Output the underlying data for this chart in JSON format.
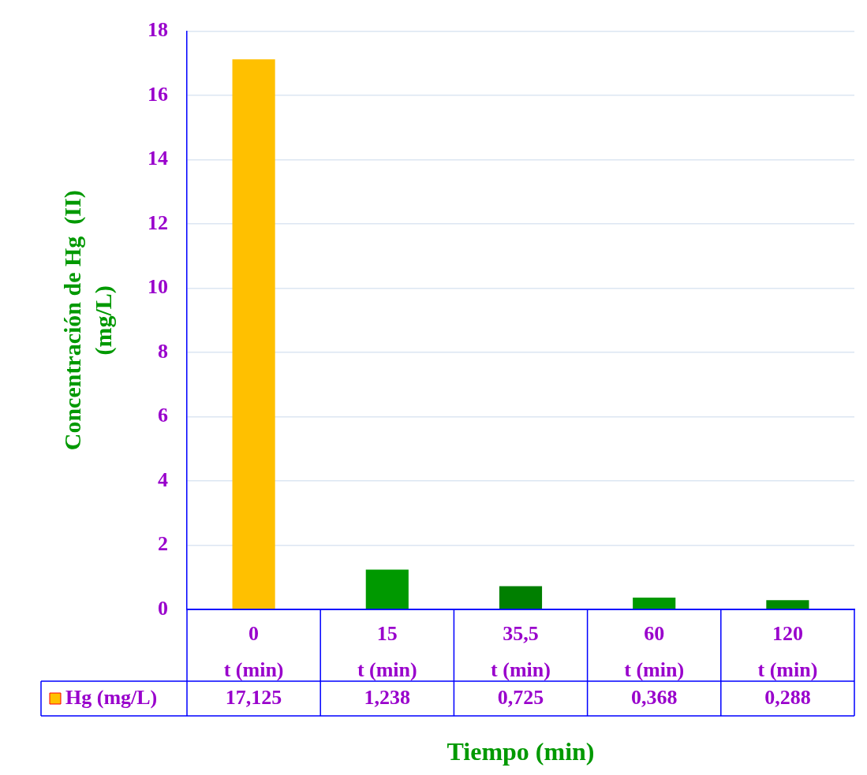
{
  "chart_data": {
    "type": "bar",
    "xlabel": "Tiempo (min)",
    "ylabel": "Concentración de Hg  (II)\n(mg/L)",
    "categories": [
      "0\nt (min)",
      "15\nt (min)",
      "35,5\nt (min)",
      "60\nt (min)",
      "120\nt (min)"
    ],
    "series": [
      {
        "name": "Hg (mg/L)",
        "colors": [
          "#ffc000",
          "#009900",
          "#007f00",
          "#009900",
          "#008a00"
        ],
        "values": [
          17.125,
          1.238,
          0.725,
          0.368,
          0.288
        ],
        "value_labels": [
          "17,125",
          "1,238",
          "0,725",
          "0,368",
          "0,288"
        ]
      }
    ],
    "ylim": [
      0,
      18
    ],
    "yticks": [
      0,
      2,
      4,
      6,
      8,
      10,
      12,
      14,
      16,
      18
    ],
    "grid": "y",
    "legend": "bottom"
  }
}
